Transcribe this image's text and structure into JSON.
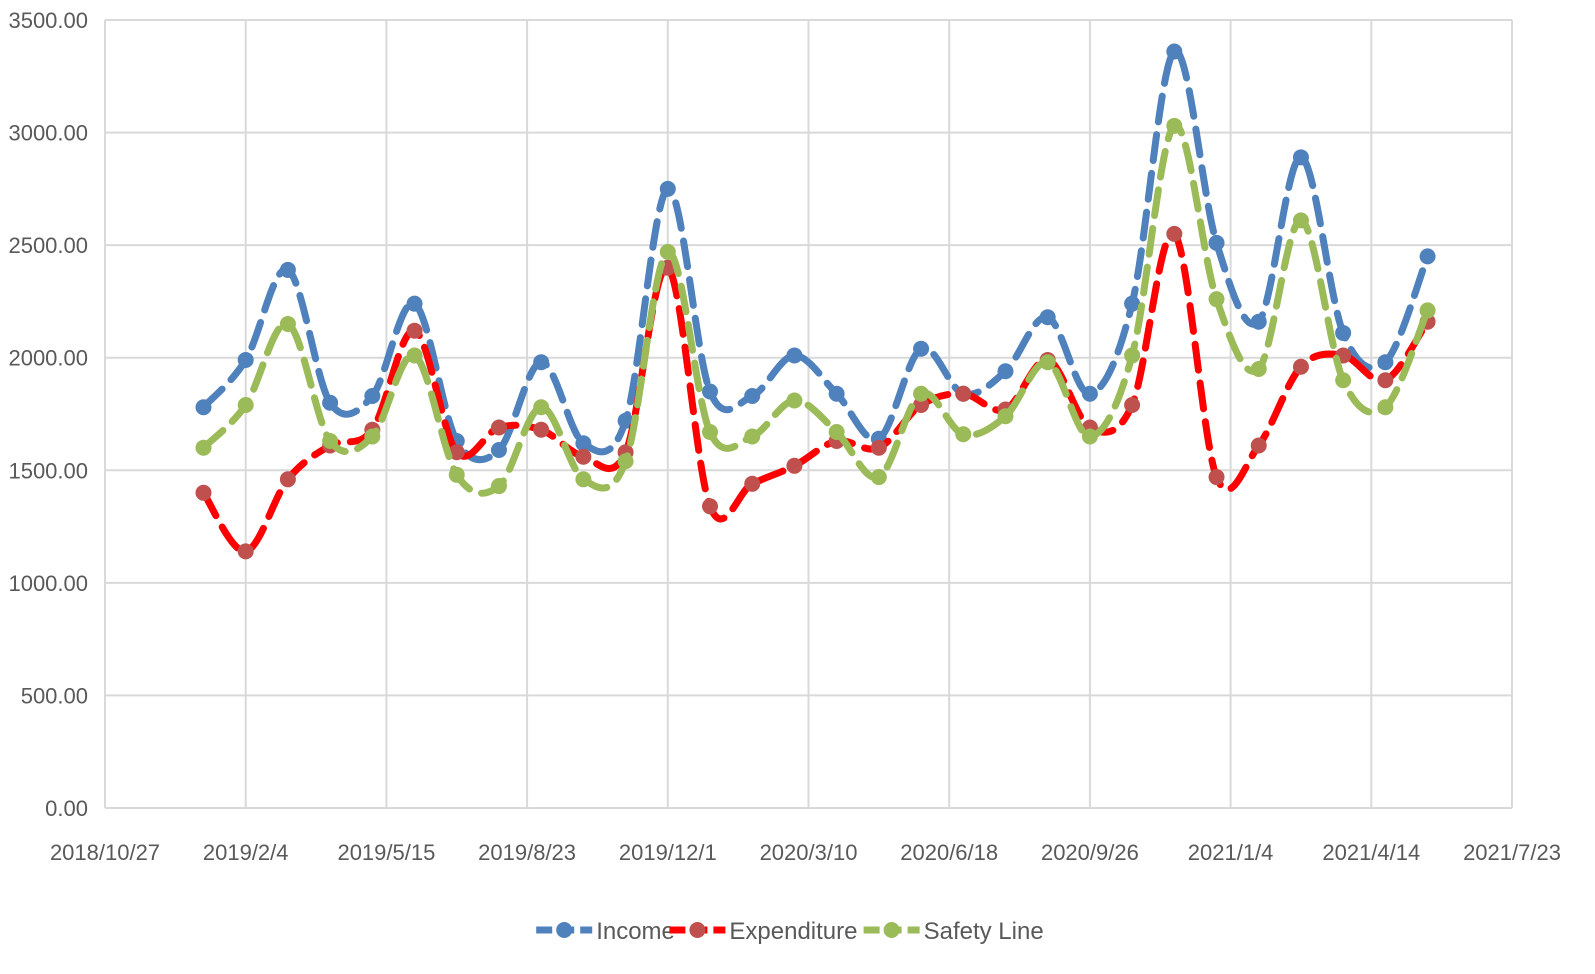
{
  "chart_data": {
    "type": "line",
    "title": "",
    "xlabel": "",
    "ylabel": "",
    "x_axis": {
      "type": "date",
      "min": "2018-10-27",
      "max": "2021-07-23",
      "ticks": [
        "2018-10-27",
        "2019-02-04",
        "2019-05-15",
        "2019-08-23",
        "2019-12-01",
        "2020-03-10",
        "2020-06-18",
        "2020-09-26",
        "2021-01-04",
        "2021-04-14",
        "2021-07-23"
      ],
      "tick_labels": [
        "2018/10/27",
        "2019/2/4",
        "2019/5/15",
        "2019/8/23",
        "2019/12/1",
        "2020/3/10",
        "2020/6/18",
        "2020/9/26",
        "2021/1/4",
        "2021/4/14",
        "2021/7/23"
      ]
    },
    "y_axis": {
      "min": 0,
      "max": 3500,
      "ticks": [
        0,
        500,
        1000,
        1500,
        2000,
        2500,
        3000,
        3500
      ],
      "tick_labels": [
        "0.00",
        "500.00",
        "1000.00",
        "1500.00",
        "2000.00",
        "2500.00",
        "3000.00",
        "3500.00"
      ]
    },
    "grid": true,
    "legend_position": "bottom",
    "x": [
      "2019-01-05",
      "2019-02-04",
      "2019-03-06",
      "2019-04-05",
      "2019-05-05",
      "2019-06-04",
      "2019-07-04",
      "2019-08-03",
      "2019-09-02",
      "2019-10-02",
      "2019-11-01",
      "2019-12-01",
      "2019-12-31",
      "2020-01-30",
      "2020-02-29",
      "2020-03-30",
      "2020-04-29",
      "2020-05-29",
      "2020-06-28",
      "2020-07-28",
      "2020-08-27",
      "2020-09-26",
      "2020-10-26",
      "2020-11-25",
      "2020-12-25",
      "2021-01-24",
      "2021-02-23",
      "2021-03-25",
      "2021-04-24",
      "2021-05-24"
    ],
    "series": [
      {
        "name": "Income",
        "color": "#4f81bd",
        "values": [
          1780,
          1990,
          2390,
          1800,
          1830,
          2240,
          1630,
          1590,
          1980,
          1620,
          1720,
          2750,
          1850,
          1830,
          2010,
          1840,
          1640,
          2040,
          1840,
          1940,
          2180,
          1840,
          2240,
          3360,
          2510,
          2160,
          2890,
          2110,
          1980,
          2450
        ]
      },
      {
        "name": "Expenditure",
        "color": "#c0504d",
        "values": [
          1400,
          1140,
          1460,
          1610,
          1680,
          2120,
          1580,
          1690,
          1680,
          1560,
          1580,
          2400,
          1340,
          1440,
          1520,
          1630,
          1600,
          1790,
          1840,
          1770,
          1990,
          1690,
          1790,
          2550,
          1470,
          1610,
          1960,
          2010,
          1900,
          2160
        ]
      },
      {
        "name": "Safety Line",
        "color": "#9bbb59",
        "values": [
          1600,
          1790,
          2150,
          1630,
          1650,
          2010,
          1480,
          1430,
          1780,
          1460,
          1540,
          2470,
          1670,
          1650,
          1810,
          1670,
          1470,
          1840,
          1660,
          1740,
          1980,
          1650,
          2010,
          3030,
          2260,
          1950,
          2610,
          1900,
          1780,
          2210
        ]
      }
    ]
  }
}
